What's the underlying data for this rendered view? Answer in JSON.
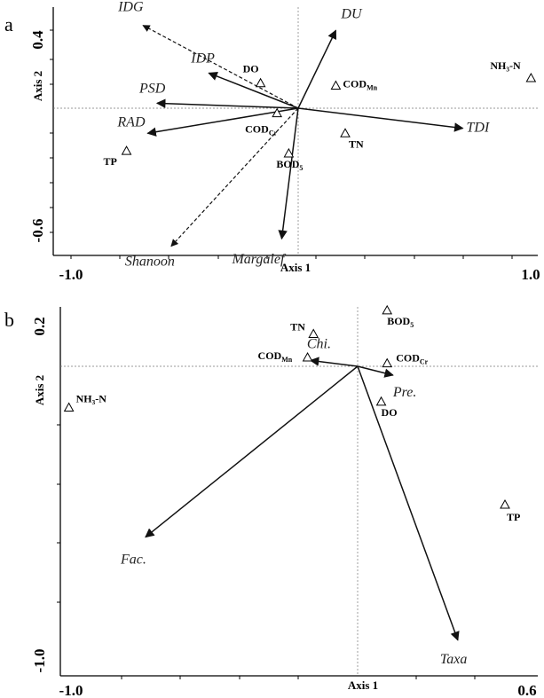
{
  "chart_data": [
    {
      "type": "scatter",
      "panel": "a",
      "xlabel": "Axis 1",
      "ylabel": "Axis 2",
      "xlim": [
        -1.0,
        1.0
      ],
      "ylim": [
        -0.6,
        0.4
      ],
      "x_ticks": [
        "-1.0",
        "1.0"
      ],
      "y_ticks": [
        "0.4",
        "-0.6"
      ],
      "vectors": [
        {
          "name": "IDG",
          "x": -0.66,
          "y": 0.33,
          "dashed": true
        },
        {
          "name": "DU",
          "x": 0.16,
          "y": 0.31,
          "dashed": false
        },
        {
          "name": "IDP",
          "x": -0.38,
          "y": 0.14,
          "dashed": false
        },
        {
          "name": "PSD",
          "x": -0.6,
          "y": 0.02,
          "dashed": false
        },
        {
          "name": "RAD",
          "x": -0.64,
          "y": -0.1,
          "dashed": false
        },
        {
          "name": "TDI",
          "x": 0.7,
          "y": -0.08,
          "dashed": false
        },
        {
          "name": "Margalef",
          "x": -0.07,
          "y": -0.52,
          "dashed": false
        },
        {
          "name": "Shanoon",
          "x": -0.54,
          "y": -0.55,
          "dashed": true
        }
      ],
      "sites": [
        {
          "label": "DO",
          "sub": "",
          "x": -0.16,
          "y": 0.1
        },
        {
          "label": "COD",
          "sub": "Mn",
          "x": 0.16,
          "y": 0.09
        },
        {
          "label": "NH₃-N",
          "sub": "",
          "x": 0.99,
          "y": 0.12
        },
        {
          "label": "COD",
          "sub": "Cr",
          "x": -0.09,
          "y": -0.02
        },
        {
          "label": "TN",
          "sub": "",
          "x": 0.2,
          "y": -0.1
        },
        {
          "label": "BOD",
          "sub": "5",
          "x": -0.04,
          "y": -0.18
        },
        {
          "label": "TP",
          "sub": "",
          "x": -0.73,
          "y": -0.17
        }
      ]
    },
    {
      "type": "scatter",
      "panel": "b",
      "xlabel": "Axis 1",
      "ylabel": "Axis 2",
      "xlim": [
        -1.0,
        0.6
      ],
      "ylim": [
        -1.0,
        0.2
      ],
      "x_ticks": [
        "-1.0",
        "0.6"
      ],
      "y_ticks": [
        "0.2",
        "-1.0"
      ],
      "vectors": [
        {
          "name": "Chi.",
          "x": -0.16,
          "y": 0.02,
          "dashed": false
        },
        {
          "name": "Pre.",
          "x": 0.12,
          "y": -0.03,
          "dashed": false
        },
        {
          "name": "Fac.",
          "x": -0.72,
          "y": -0.58,
          "dashed": false
        },
        {
          "name": "Taxa",
          "x": 0.34,
          "y": -0.93,
          "dashed": false
        }
      ],
      "sites": [
        {
          "label": "BOD",
          "sub": "5",
          "x": 0.1,
          "y": 0.19
        },
        {
          "label": "TN",
          "sub": "",
          "x": -0.15,
          "y": 0.11
        },
        {
          "label": "COD",
          "sub": "Mn",
          "x": -0.17,
          "y": 0.03
        },
        {
          "label": "COD",
          "sub": "Cr",
          "x": 0.1,
          "y": 0.01
        },
        {
          "label": "NH₃-N",
          "sub": "",
          "x": -0.98,
          "y": -0.14
        },
        {
          "label": "DO",
          "sub": "",
          "x": 0.08,
          "y": -0.12
        },
        {
          "label": "TP",
          "sub": "",
          "x": 0.5,
          "y": -0.47
        }
      ]
    }
  ]
}
